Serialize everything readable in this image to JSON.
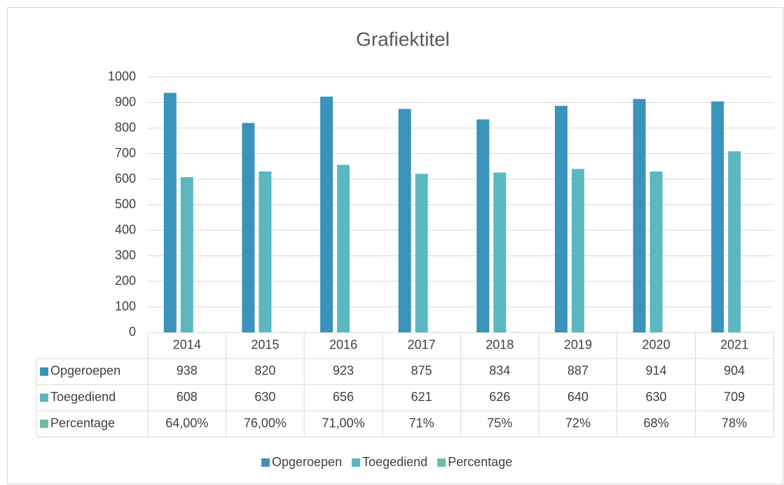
{
  "chart_data": {
    "type": "bar",
    "title": "Grafiektitel",
    "categories": [
      "2014",
      "2015",
      "2016",
      "2017",
      "2018",
      "2019",
      "2020",
      "2021"
    ],
    "series": [
      {
        "name": "Opgeroepen",
        "color": "#3a93bb",
        "values": [
          938,
          820,
          923,
          875,
          834,
          887,
          914,
          904
        ]
      },
      {
        "name": "Toegediend",
        "color": "#5bb7c1",
        "values": [
          608,
          630,
          656,
          621,
          626,
          640,
          630,
          709
        ]
      },
      {
        "name": "Percentage",
        "color": "#6cbea6",
        "values": [
          0.64,
          0.76,
          0.71,
          0.71,
          0.75,
          0.72,
          0.68,
          0.78
        ],
        "value_labels": [
          "64,00%",
          "76,00%",
          "71,00%",
          "71%",
          "75%",
          "72%",
          "68%",
          "78%"
        ]
      }
    ],
    "ylim": [
      0,
      1000
    ],
    "yticks": [
      0,
      100,
      200,
      300,
      400,
      500,
      600,
      700,
      800,
      900,
      1000
    ],
    "grid": true,
    "legend": "bottom",
    "data_table": true
  }
}
